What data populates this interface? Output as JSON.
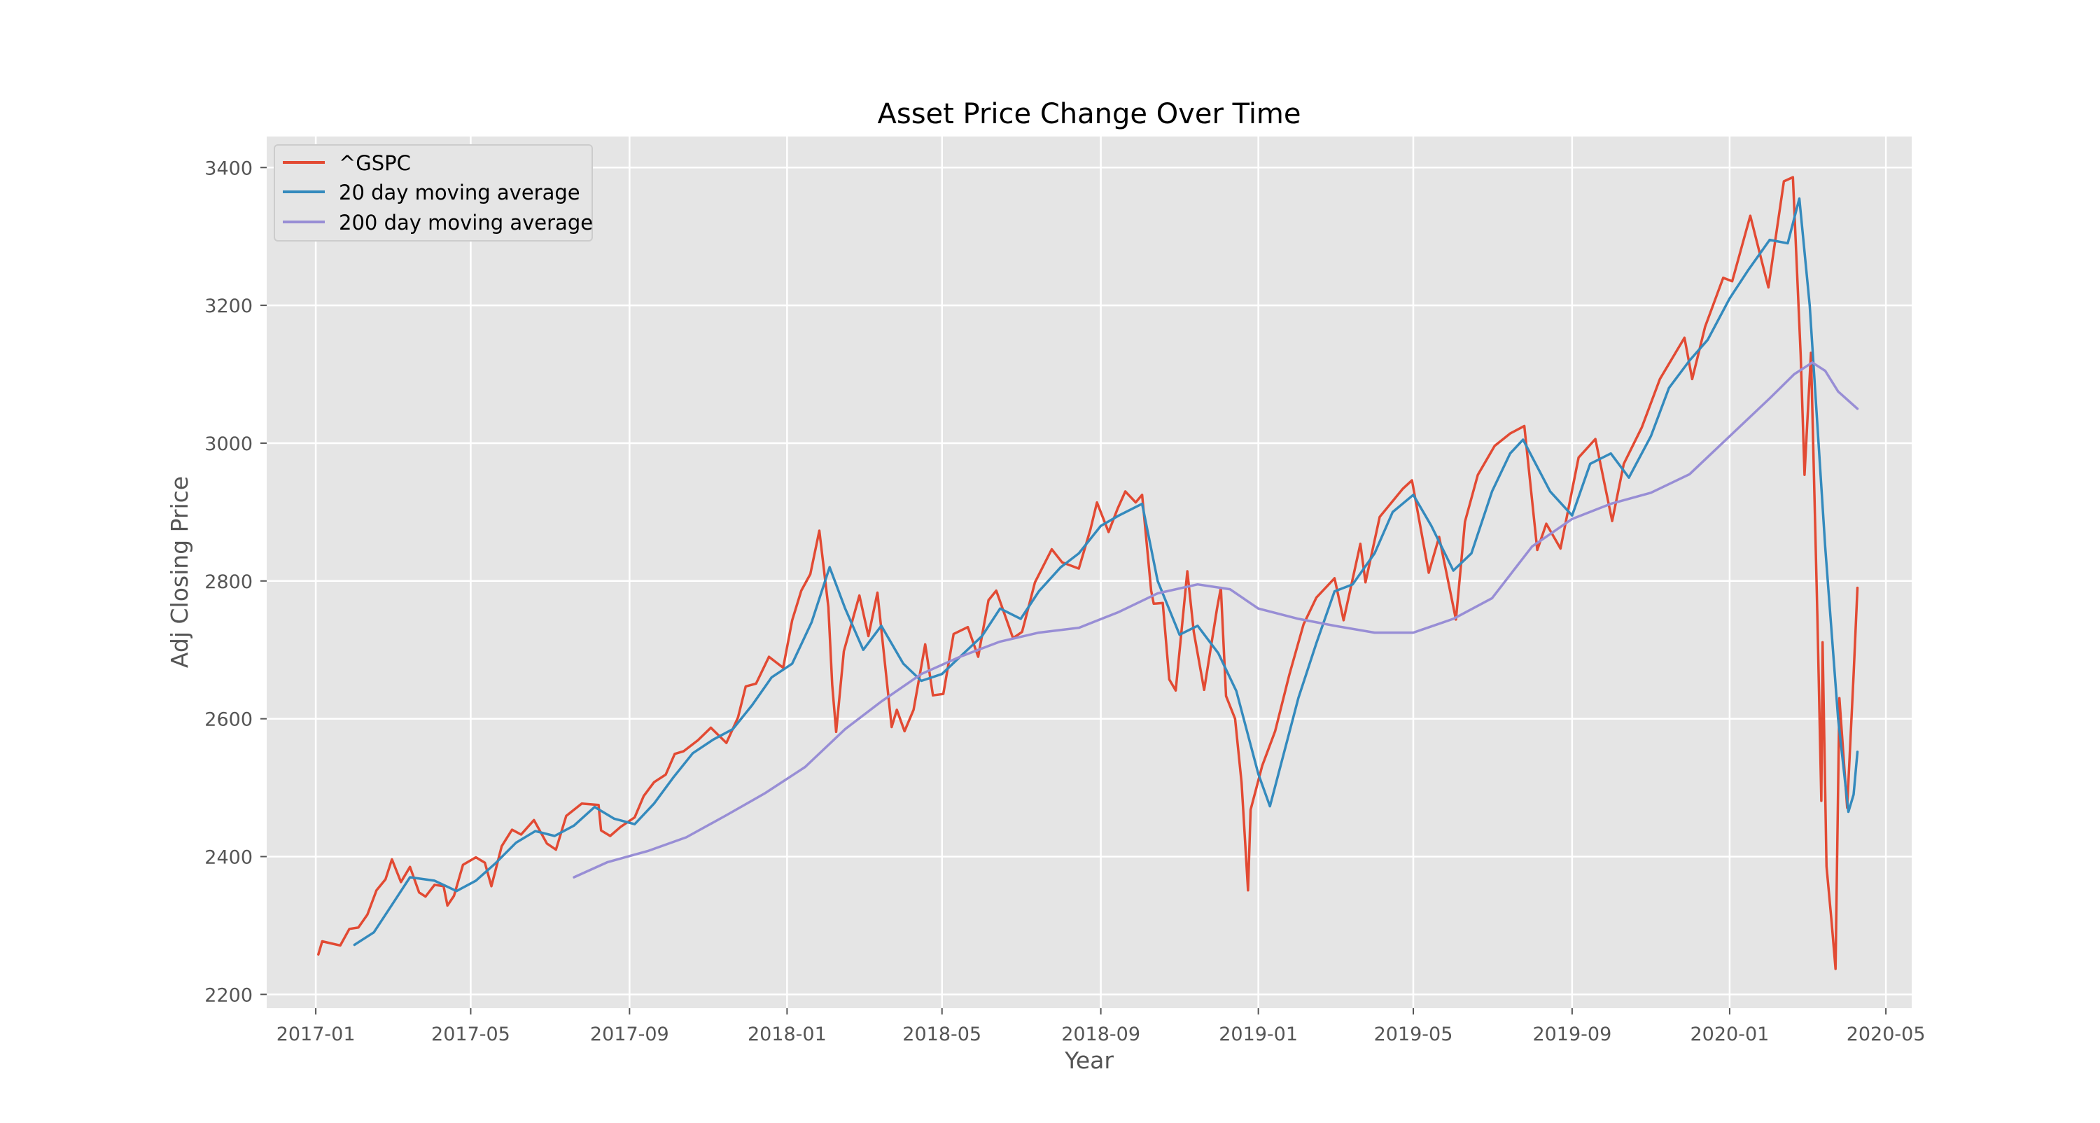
{
  "chart_data": {
    "type": "line",
    "title": "Asset Price Change Over Time",
    "xlabel": "Year",
    "ylabel": "Adj Closing Price",
    "x_axis_type": "date",
    "xlim": [
      "2016-11-24",
      "2020-05-21"
    ],
    "ylim": [
      2180,
      3445
    ],
    "x_ticks": [
      "2017-01",
      "2017-05",
      "2017-09",
      "2018-01",
      "2018-05",
      "2018-09",
      "2019-01",
      "2019-05",
      "2019-09",
      "2020-01",
      "2020-05"
    ],
    "y_ticks": [
      2200,
      2400,
      2600,
      2800,
      3000,
      3200,
      3400
    ],
    "grid": true,
    "background": "#e5e5e5",
    "legend_position": "top-left",
    "series": [
      {
        "name": "^GSPC",
        "color": "#e24a33",
        "points": [
          [
            "2017-01-03",
            2258
          ],
          [
            "2017-01-06",
            2277
          ],
          [
            "2017-01-13",
            2274
          ],
          [
            "2017-01-20",
            2271
          ],
          [
            "2017-01-27",
            2295
          ],
          [
            "2017-02-03",
            2297
          ],
          [
            "2017-02-10",
            2316
          ],
          [
            "2017-02-17",
            2351
          ],
          [
            "2017-02-24",
            2367
          ],
          [
            "2017-03-01",
            2396
          ],
          [
            "2017-03-08",
            2363
          ],
          [
            "2017-03-15",
            2385
          ],
          [
            "2017-03-22",
            2348
          ],
          [
            "2017-03-27",
            2342
          ],
          [
            "2017-04-03",
            2359
          ],
          [
            "2017-04-10",
            2357
          ],
          [
            "2017-04-13",
            2329
          ],
          [
            "2017-04-18",
            2343
          ],
          [
            "2017-04-25",
            2388
          ],
          [
            "2017-05-05",
            2399
          ],
          [
            "2017-05-12",
            2391
          ],
          [
            "2017-05-17",
            2357
          ],
          [
            "2017-05-25",
            2415
          ],
          [
            "2017-06-02",
            2439
          ],
          [
            "2017-06-09",
            2432
          ],
          [
            "2017-06-19",
            2453
          ],
          [
            "2017-06-29",
            2419
          ],
          [
            "2017-07-06",
            2410
          ],
          [
            "2017-07-14",
            2459
          ],
          [
            "2017-07-26",
            2477
          ],
          [
            "2017-08-08",
            2475
          ],
          [
            "2017-08-10",
            2438
          ],
          [
            "2017-08-17",
            2430
          ],
          [
            "2017-08-25",
            2443
          ],
          [
            "2017-09-05",
            2457
          ],
          [
            "2017-09-12",
            2488
          ],
          [
            "2017-09-20",
            2508
          ],
          [
            "2017-09-29",
            2519
          ],
          [
            "2017-10-06",
            2549
          ],
          [
            "2017-10-13",
            2553
          ],
          [
            "2017-10-24",
            2569
          ],
          [
            "2017-11-03",
            2587
          ],
          [
            "2017-11-15",
            2565
          ],
          [
            "2017-11-24",
            2602
          ],
          [
            "2017-11-30",
            2647
          ],
          [
            "2017-12-08",
            2651
          ],
          [
            "2017-12-18",
            2690
          ],
          [
            "2017-12-29",
            2674
          ],
          [
            "2018-01-05",
            2743
          ],
          [
            "2018-01-12",
            2786
          ],
          [
            "2018-01-19",
            2810
          ],
          [
            "2018-01-26",
            2873
          ],
          [
            "2018-02-02",
            2762
          ],
          [
            "2018-02-05",
            2649
          ],
          [
            "2018-02-08",
            2581
          ],
          [
            "2018-02-14",
            2698
          ],
          [
            "2018-02-26",
            2779
          ],
          [
            "2018-03-05",
            2720
          ],
          [
            "2018-03-12",
            2783
          ],
          [
            "2018-03-23",
            2588
          ],
          [
            "2018-03-27",
            2613
          ],
          [
            "2018-04-02",
            2582
          ],
          [
            "2018-04-09",
            2613
          ],
          [
            "2018-04-18",
            2708
          ],
          [
            "2018-04-24",
            2634
          ],
          [
            "2018-05-02",
            2636
          ],
          [
            "2018-05-10",
            2723
          ],
          [
            "2018-05-21",
            2733
          ],
          [
            "2018-05-29",
            2690
          ],
          [
            "2018-06-06",
            2772
          ],
          [
            "2018-06-12",
            2786
          ],
          [
            "2018-06-25",
            2717
          ],
          [
            "2018-07-02",
            2726
          ],
          [
            "2018-07-12",
            2798
          ],
          [
            "2018-07-25",
            2846
          ],
          [
            "2018-08-02",
            2827
          ],
          [
            "2018-08-15",
            2818
          ],
          [
            "2018-08-24",
            2875
          ],
          [
            "2018-08-29",
            2914
          ],
          [
            "2018-09-07",
            2871
          ],
          [
            "2018-09-14",
            2905
          ],
          [
            "2018-09-20",
            2930
          ],
          [
            "2018-09-28",
            2914
          ],
          [
            "2018-10-03",
            2925
          ],
          [
            "2018-10-10",
            2786
          ],
          [
            "2018-10-12",
            2767
          ],
          [
            "2018-10-19",
            2768
          ],
          [
            "2018-10-24",
            2657
          ],
          [
            "2018-10-29",
            2641
          ],
          [
            "2018-11-07",
            2814
          ],
          [
            "2018-11-12",
            2726
          ],
          [
            "2018-11-20",
            2642
          ],
          [
            "2018-11-30",
            2760
          ],
          [
            "2018-12-03",
            2790
          ],
          [
            "2018-12-07",
            2633
          ],
          [
            "2018-12-14",
            2600
          ],
          [
            "2018-12-19",
            2507
          ],
          [
            "2018-12-24",
            2351
          ],
          [
            "2018-12-26",
            2468
          ],
          [
            "2019-01-04",
            2532
          ],
          [
            "2019-01-14",
            2582
          ],
          [
            "2019-01-25",
            2664
          ],
          [
            "2019-02-05",
            2737
          ],
          [
            "2019-02-15",
            2776
          ],
          [
            "2019-03-01",
            2804
          ],
          [
            "2019-03-08",
            2743
          ],
          [
            "2019-03-21",
            2854
          ],
          [
            "2019-03-25",
            2798
          ],
          [
            "2019-04-05",
            2893
          ],
          [
            "2019-04-23",
            2934
          ],
          [
            "2019-04-30",
            2946
          ],
          [
            "2019-05-13",
            2812
          ],
          [
            "2019-05-21",
            2864
          ],
          [
            "2019-06-03",
            2744
          ],
          [
            "2019-06-10",
            2886
          ],
          [
            "2019-06-20",
            2954
          ],
          [
            "2019-07-03",
            2996
          ],
          [
            "2019-07-15",
            3014
          ],
          [
            "2019-07-26",
            3025
          ],
          [
            "2019-08-05",
            2845
          ],
          [
            "2019-08-12",
            2883
          ],
          [
            "2019-08-23",
            2847
          ],
          [
            "2019-09-06",
            2979
          ],
          [
            "2019-09-19",
            3006
          ],
          [
            "2019-10-02",
            2887
          ],
          [
            "2019-10-11",
            2970
          ],
          [
            "2019-10-25",
            3023
          ],
          [
            "2019-11-08",
            3093
          ],
          [
            "2019-11-27",
            3153
          ],
          [
            "2019-12-03",
            3093
          ],
          [
            "2019-12-13",
            3169
          ],
          [
            "2019-12-27",
            3240
          ],
          [
            "2020-01-03",
            3235
          ],
          [
            "2020-01-17",
            3330
          ],
          [
            "2020-01-31",
            3226
          ],
          [
            "2020-02-12",
            3380
          ],
          [
            "2020-02-19",
            3386
          ],
          [
            "2020-02-25",
            3128
          ],
          [
            "2020-02-28",
            2954
          ],
          [
            "2020-03-04",
            3131
          ],
          [
            "2020-03-09",
            2747
          ],
          [
            "2020-03-12",
            2481
          ],
          [
            "2020-03-13",
            2711
          ],
          [
            "2020-03-16",
            2386
          ],
          [
            "2020-03-20",
            2305
          ],
          [
            "2020-03-23",
            2237
          ],
          [
            "2020-03-26",
            2630
          ],
          [
            "2020-04-01",
            2471
          ],
          [
            "2020-04-06",
            2664
          ],
          [
            "2020-04-09",
            2790
          ]
        ]
      },
      {
        "name": "20 day moving average",
        "color": "#348abd",
        "points": [
          [
            "2017-01-31",
            2272
          ],
          [
            "2017-02-15",
            2290
          ],
          [
            "2017-03-01",
            2330
          ],
          [
            "2017-03-15",
            2370
          ],
          [
            "2017-04-03",
            2365
          ],
          [
            "2017-04-20",
            2350
          ],
          [
            "2017-05-05",
            2365
          ],
          [
            "2017-05-20",
            2390
          ],
          [
            "2017-06-05",
            2420
          ],
          [
            "2017-06-20",
            2437
          ],
          [
            "2017-07-05",
            2430
          ],
          [
            "2017-07-20",
            2445
          ],
          [
            "2017-08-05",
            2472
          ],
          [
            "2017-08-20",
            2455
          ],
          [
            "2017-09-05",
            2447
          ],
          [
            "2017-09-20",
            2477
          ],
          [
            "2017-10-05",
            2515
          ],
          [
            "2017-10-20",
            2550
          ],
          [
            "2017-11-05",
            2570
          ],
          [
            "2017-11-20",
            2585
          ],
          [
            "2017-12-05",
            2620
          ],
          [
            "2017-12-20",
            2660
          ],
          [
            "2018-01-05",
            2680
          ],
          [
            "2018-01-20",
            2740
          ],
          [
            "2018-02-03",
            2820
          ],
          [
            "2018-02-15",
            2760
          ],
          [
            "2018-03-01",
            2700
          ],
          [
            "2018-03-15",
            2735
          ],
          [
            "2018-04-01",
            2680
          ],
          [
            "2018-04-15",
            2655
          ],
          [
            "2018-05-01",
            2665
          ],
          [
            "2018-05-15",
            2690
          ],
          [
            "2018-06-01",
            2720
          ],
          [
            "2018-06-15",
            2760
          ],
          [
            "2018-07-01",
            2745
          ],
          [
            "2018-07-15",
            2785
          ],
          [
            "2018-08-01",
            2820
          ],
          [
            "2018-08-15",
            2840
          ],
          [
            "2018-09-01",
            2880
          ],
          [
            "2018-09-15",
            2895
          ],
          [
            "2018-10-03",
            2912
          ],
          [
            "2018-10-15",
            2800
          ],
          [
            "2018-11-01",
            2722
          ],
          [
            "2018-11-15",
            2735
          ],
          [
            "2018-12-01",
            2695
          ],
          [
            "2018-12-15",
            2640
          ],
          [
            "2019-01-01",
            2520
          ],
          [
            "2019-01-10",
            2473
          ],
          [
            "2019-02-01",
            2630
          ],
          [
            "2019-02-15",
            2710
          ],
          [
            "2019-03-01",
            2785
          ],
          [
            "2019-03-15",
            2795
          ],
          [
            "2019-04-01",
            2840
          ],
          [
            "2019-04-15",
            2900
          ],
          [
            "2019-05-01",
            2925
          ],
          [
            "2019-05-15",
            2880
          ],
          [
            "2019-06-01",
            2815
          ],
          [
            "2019-06-15",
            2840
          ],
          [
            "2019-07-01",
            2930
          ],
          [
            "2019-07-15",
            2985
          ],
          [
            "2019-07-25",
            3005
          ],
          [
            "2019-08-15",
            2930
          ],
          [
            "2019-09-01",
            2895
          ],
          [
            "2019-09-15",
            2970
          ],
          [
            "2019-10-01",
            2985
          ],
          [
            "2019-10-15",
            2950
          ],
          [
            "2019-11-01",
            3010
          ],
          [
            "2019-11-15",
            3080
          ],
          [
            "2019-12-01",
            3120
          ],
          [
            "2019-12-15",
            3150
          ],
          [
            "2020-01-01",
            3210
          ],
          [
            "2020-01-15",
            3250
          ],
          [
            "2020-02-01",
            3295
          ],
          [
            "2020-02-15",
            3290
          ],
          [
            "2020-02-24",
            3355
          ],
          [
            "2020-03-03",
            3200
          ],
          [
            "2020-03-15",
            2850
          ],
          [
            "2020-03-25",
            2600
          ],
          [
            "2020-04-02",
            2465
          ],
          [
            "2020-04-06",
            2490
          ],
          [
            "2020-04-09",
            2552
          ]
        ]
      },
      {
        "name": "200 day moving average",
        "color": "#988ed5",
        "points": [
          [
            "2017-07-20",
            2370
          ],
          [
            "2017-08-15",
            2392
          ],
          [
            "2017-09-15",
            2408
          ],
          [
            "2017-10-15",
            2428
          ],
          [
            "2017-11-15",
            2460
          ],
          [
            "2017-12-15",
            2492
          ],
          [
            "2018-01-15",
            2530
          ],
          [
            "2018-02-15",
            2585
          ],
          [
            "2018-03-15",
            2625
          ],
          [
            "2018-04-15",
            2665
          ],
          [
            "2018-05-15",
            2690
          ],
          [
            "2018-06-15",
            2712
          ],
          [
            "2018-07-15",
            2725
          ],
          [
            "2018-08-15",
            2732
          ],
          [
            "2018-09-15",
            2755
          ],
          [
            "2018-10-15",
            2782
          ],
          [
            "2018-11-15",
            2795
          ],
          [
            "2018-12-10",
            2788
          ],
          [
            "2019-01-01",
            2760
          ],
          [
            "2019-02-01",
            2745
          ],
          [
            "2019-03-01",
            2735
          ],
          [
            "2019-04-01",
            2725
          ],
          [
            "2019-05-01",
            2725
          ],
          [
            "2019-06-01",
            2745
          ],
          [
            "2019-07-01",
            2775
          ],
          [
            "2019-08-01",
            2850
          ],
          [
            "2019-09-01",
            2890
          ],
          [
            "2019-10-01",
            2912
          ],
          [
            "2019-11-01",
            2928
          ],
          [
            "2019-12-01",
            2955
          ],
          [
            "2020-01-01",
            3010
          ],
          [
            "2020-02-01",
            3065
          ],
          [
            "2020-02-20",
            3100
          ],
          [
            "2020-03-05",
            3117
          ],
          [
            "2020-03-15",
            3105
          ],
          [
            "2020-03-25",
            3075
          ],
          [
            "2020-04-09",
            3050
          ]
        ]
      }
    ]
  }
}
